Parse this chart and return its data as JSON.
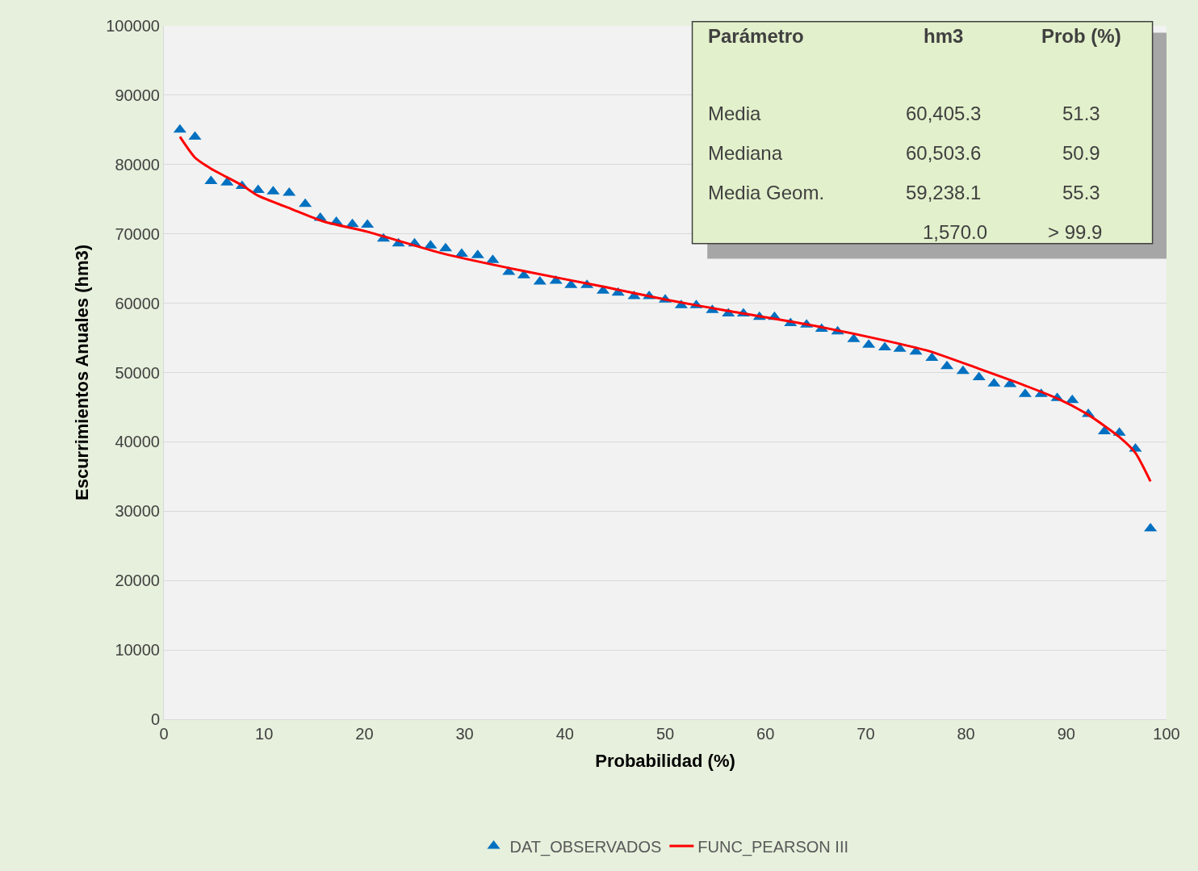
{
  "chart_data": {
    "type": "scatter",
    "xlabel": "Probabilidad (%)",
    "ylabel": "Escurrimientos Anuales (hm3)",
    "xlim": [
      0,
      100
    ],
    "xticks": [
      0,
      10,
      20,
      30,
      40,
      50,
      60,
      70,
      80,
      90,
      100
    ],
    "ylim": [
      0,
      100000
    ],
    "yticks": [
      0,
      10000,
      20000,
      30000,
      40000,
      50000,
      60000,
      70000,
      80000,
      90000,
      100000
    ],
    "grid": "y",
    "legend": "bottom",
    "series": [
      {
        "name": "DAT_OBSERVADOS",
        "marker": "triangle",
        "color": "#0070c0",
        "x": [
          1.6,
          3.1,
          4.7,
          6.3,
          7.8,
          9.4,
          10.9,
          12.5,
          14.1,
          15.6,
          17.2,
          18.8,
          20.3,
          21.9,
          23.4,
          25.0,
          26.6,
          28.1,
          29.7,
          31.3,
          32.8,
          34.4,
          35.9,
          37.5,
          39.1,
          40.6,
          42.2,
          43.8,
          45.3,
          46.9,
          48.4,
          50.0,
          51.6,
          53.1,
          54.7,
          56.3,
          57.8,
          59.4,
          60.9,
          62.5,
          64.1,
          65.6,
          67.2,
          68.8,
          70.3,
          71.9,
          73.4,
          75.0,
          76.6,
          78.1,
          79.7,
          81.3,
          82.8,
          84.4,
          85.9,
          87.5,
          89.1,
          90.6,
          92.2,
          93.8,
          95.3,
          96.9,
          98.4
        ],
        "values": [
          85000,
          84000,
          77600,
          77400,
          76900,
          76300,
          76100,
          75900,
          74300,
          72300,
          71700,
          71400,
          71300,
          69300,
          68600,
          68600,
          68300,
          67900,
          67100,
          66900,
          66200,
          64500,
          64000,
          63100,
          63200,
          62600,
          62600,
          61800,
          61500,
          61000,
          61000,
          60500,
          59700,
          59700,
          59000,
          58500,
          58500,
          58000,
          58000,
          57100,
          56900,
          56300,
          55900,
          54800,
          54000,
          53600,
          53400,
          53000,
          52100,
          50900,
          50200,
          49300,
          48400,
          48300,
          46900,
          46900,
          46300,
          46000,
          44000,
          41500,
          41300,
          39000,
          27500
        ]
      },
      {
        "name": "FUNC_PEARSON III",
        "type": "line",
        "marker": "none",
        "line_style": "solid",
        "color": "#ff0000",
        "x": [
          1.6,
          3.1,
          4.7,
          7.8,
          9.4,
          12.7,
          15.9,
          20.3,
          28.0,
          36.0,
          44.1,
          50.1,
          56.2,
          64.3,
          72.3,
          76.3,
          81.2,
          85.2,
          89.2,
          92.2,
          95.3,
          96.9,
          98.4
        ],
        "values": [
          84000,
          81000,
          79400,
          77000,
          75500,
          73600,
          71800,
          70300,
          67100,
          64600,
          62300,
          60500,
          58900,
          56900,
          54500,
          53100,
          50600,
          48500,
          46200,
          43900,
          40700,
          38400,
          34300
        ]
      }
    ],
    "annotations": [
      "Parámetro",
      "hm3",
      "Prob (%)",
      "Media",
      "60,405.3",
      "51.3",
      "Mediana",
      "60,503.6",
      "50.9",
      "Media Geom.",
      "59,238.1",
      "55.3",
      "1,570.0",
      "> 99.9"
    ]
  }
}
